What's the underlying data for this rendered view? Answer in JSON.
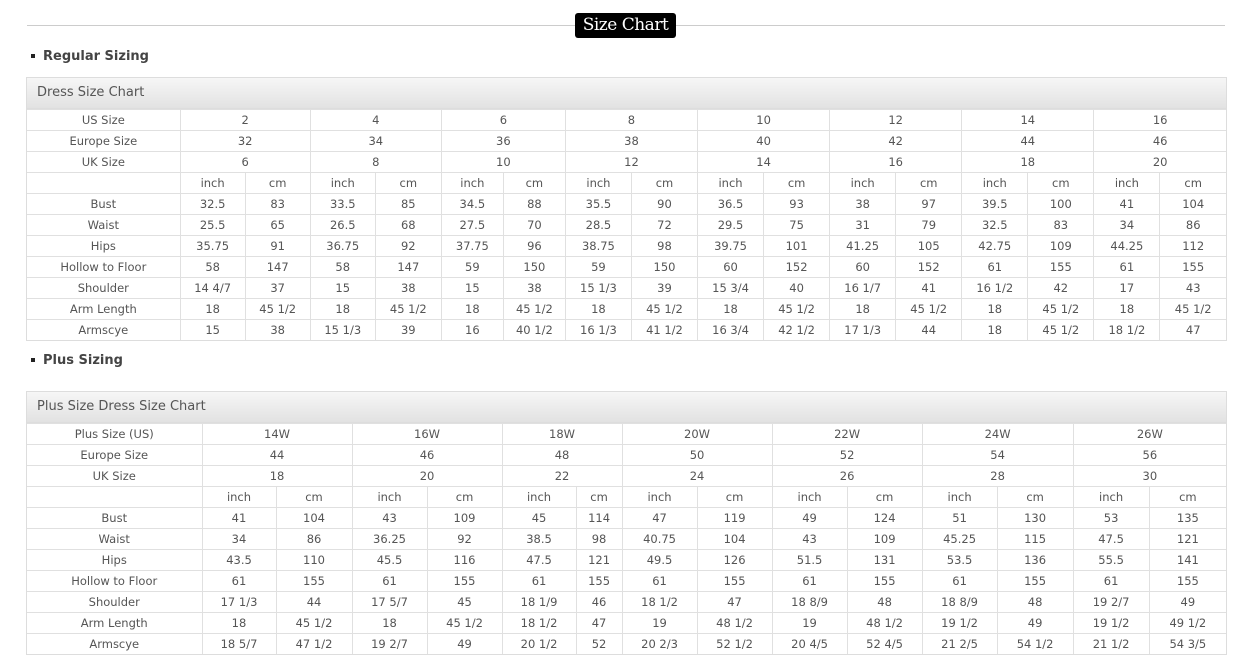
{
  "page": {
    "title": "Size Chart"
  },
  "regular": {
    "section": "Regular Sizing",
    "caption": "Dress Size Chart",
    "size_rows": [
      {
        "label": "US Size",
        "values": [
          "2",
          "4",
          "6",
          "8",
          "10",
          "12",
          "14",
          "16"
        ]
      },
      {
        "label": "Europe Size",
        "values": [
          "32",
          "34",
          "36",
          "38",
          "40",
          "42",
          "44",
          "46"
        ]
      },
      {
        "label": "UK Size",
        "values": [
          "6",
          "8",
          "10",
          "12",
          "14",
          "16",
          "18",
          "20"
        ]
      }
    ],
    "units": [
      "inch",
      "cm"
    ],
    "measure_rows": [
      {
        "label": "Bust",
        "values": [
          "32.5",
          "83",
          "33.5",
          "85",
          "34.5",
          "88",
          "35.5",
          "90",
          "36.5",
          "93",
          "38",
          "97",
          "39.5",
          "100",
          "41",
          "104"
        ]
      },
      {
        "label": "Waist",
        "values": [
          "25.5",
          "65",
          "26.5",
          "68",
          "27.5",
          "70",
          "28.5",
          "72",
          "29.5",
          "75",
          "31",
          "79",
          "32.5",
          "83",
          "34",
          "86"
        ]
      },
      {
        "label": "Hips",
        "values": [
          "35.75",
          "91",
          "36.75",
          "92",
          "37.75",
          "96",
          "38.75",
          "98",
          "39.75",
          "101",
          "41.25",
          "105",
          "42.75",
          "109",
          "44.25",
          "112"
        ]
      },
      {
        "label": "Hollow to Floor",
        "values": [
          "58",
          "147",
          "58",
          "147",
          "59",
          "150",
          "59",
          "150",
          "60",
          "152",
          "60",
          "152",
          "61",
          "155",
          "61",
          "155"
        ]
      },
      {
        "label": "Shoulder",
        "values": [
          "14 4/7",
          "37",
          "15",
          "38",
          "15",
          "38",
          "15 1/3",
          "39",
          "15 3/4",
          "40",
          "16 1/7",
          "41",
          "16 1/2",
          "42",
          "17",
          "43"
        ]
      },
      {
        "label": "Arm Length",
        "values": [
          "18",
          "45 1/2",
          "18",
          "45 1/2",
          "18",
          "45 1/2",
          "18",
          "45 1/2",
          "18",
          "45 1/2",
          "18",
          "45 1/2",
          "18",
          "45 1/2",
          "18",
          "45 1/2"
        ]
      },
      {
        "label": "Armscye",
        "values": [
          "15",
          "38",
          "15 1/3",
          "39",
          "16",
          "40 1/2",
          "16 1/3",
          "41 1/2",
          "16 3/4",
          "42 1/2",
          "17 1/3",
          "44",
          "18",
          "45 1/2",
          "18 1/2",
          "47"
        ]
      }
    ]
  },
  "plus": {
    "section": "Plus Sizing",
    "caption": "Plus Size Dress Size Chart",
    "size_rows": [
      {
        "label": "Plus Size (US)",
        "values": [
          "14W",
          "16W",
          "18W",
          "20W",
          "22W",
          "24W",
          "26W"
        ]
      },
      {
        "label": "Europe Size",
        "values": [
          "44",
          "46",
          "48",
          "50",
          "52",
          "54",
          "56"
        ]
      },
      {
        "label": "UK Size",
        "values": [
          "18",
          "20",
          "22",
          "24",
          "26",
          "28",
          "30"
        ]
      }
    ],
    "units": [
      "inch",
      "cm"
    ],
    "measure_rows": [
      {
        "label": "Bust",
        "values": [
          "41",
          "104",
          "43",
          "109",
          "45",
          "114",
          "47",
          "119",
          "49",
          "124",
          "51",
          "130",
          "53",
          "135"
        ]
      },
      {
        "label": "Waist",
        "values": [
          "34",
          "86",
          "36.25",
          "92",
          "38.5",
          "98",
          "40.75",
          "104",
          "43",
          "109",
          "45.25",
          "115",
          "47.5",
          "121"
        ]
      },
      {
        "label": "Hips",
        "values": [
          "43.5",
          "110",
          "45.5",
          "116",
          "47.5",
          "121",
          "49.5",
          "126",
          "51.5",
          "131",
          "53.5",
          "136",
          "55.5",
          "141"
        ]
      },
      {
        "label": "Hollow to Floor",
        "values": [
          "61",
          "155",
          "61",
          "155",
          "61",
          "155",
          "61",
          "155",
          "61",
          "155",
          "61",
          "155",
          "61",
          "155"
        ]
      },
      {
        "label": "Shoulder",
        "values": [
          "17 1/3",
          "44",
          "17 5/7",
          "45",
          "18 1/9",
          "46",
          "18 1/2",
          "47",
          "18 8/9",
          "48",
          "18 8/9",
          "48",
          "19 2/7",
          "49"
        ]
      },
      {
        "label": "Arm Length",
        "values": [
          "18",
          "45 1/2",
          "18",
          "45 1/2",
          "18 1/2",
          "47",
          "19",
          "48 1/2",
          "19",
          "48 1/2",
          "19 1/2",
          "49",
          "19 1/2",
          "49 1/2"
        ]
      },
      {
        "label": "Armscye",
        "values": [
          "18 5/7",
          "47 1/2",
          "19 2/7",
          "49",
          "20 1/2",
          "52",
          "20 2/3",
          "52 1/2",
          "20 4/5",
          "52 4/5",
          "21 2/5",
          "54 1/2",
          "21 1/2",
          "54 3/5"
        ]
      }
    ]
  }
}
